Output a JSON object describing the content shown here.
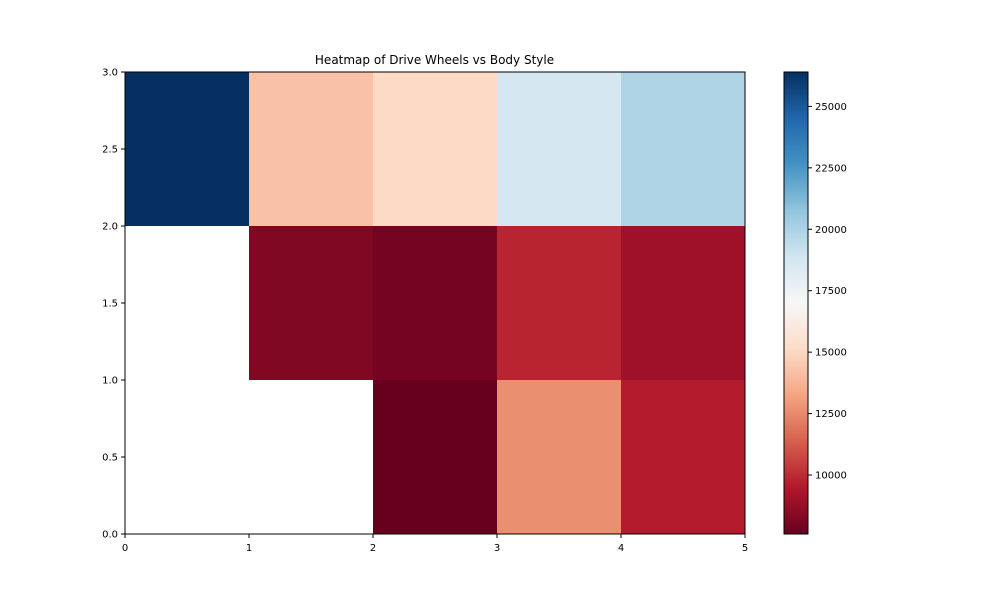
{
  "chart_data": {
    "type": "heatmap",
    "title": "Heatmap of Drive Wheels vs Body Style",
    "xlabel": "",
    "ylabel": "",
    "x_edges": [
      0,
      1,
      2,
      3,
      4,
      5
    ],
    "y_edges": [
      0,
      1,
      2,
      3
    ],
    "xlim": [
      0,
      5
    ],
    "ylim": [
      0,
      3
    ],
    "x_ticks": [
      "0",
      "1",
      "2",
      "3",
      "4",
      "5"
    ],
    "y_ticks": [
      "0.0",
      "0.5",
      "1.0",
      "1.5",
      "2.0",
      "2.5",
      "3.0"
    ],
    "colormap": "RdBu",
    "color_range": [
      7600,
      26400
    ],
    "colorbar_ticks": [
      "10000",
      "12500",
      "15000",
      "17500",
      "20000",
      "22500",
      "25000"
    ],
    "rows": [
      {
        "y_range": [
          0,
          1
        ],
        "values": [
          null,
          null,
          7603,
          12647,
          9595
        ]
      },
      {
        "y_range": [
          1,
          2
        ],
        "values": [
          null,
          8249,
          7915,
          9811,
          8970
        ]
      },
      {
        "y_range": [
          2,
          3
        ],
        "values": [
          26400,
          14200,
          15100,
          18700,
          19900
        ]
      }
    ],
    "grid": false
  }
}
